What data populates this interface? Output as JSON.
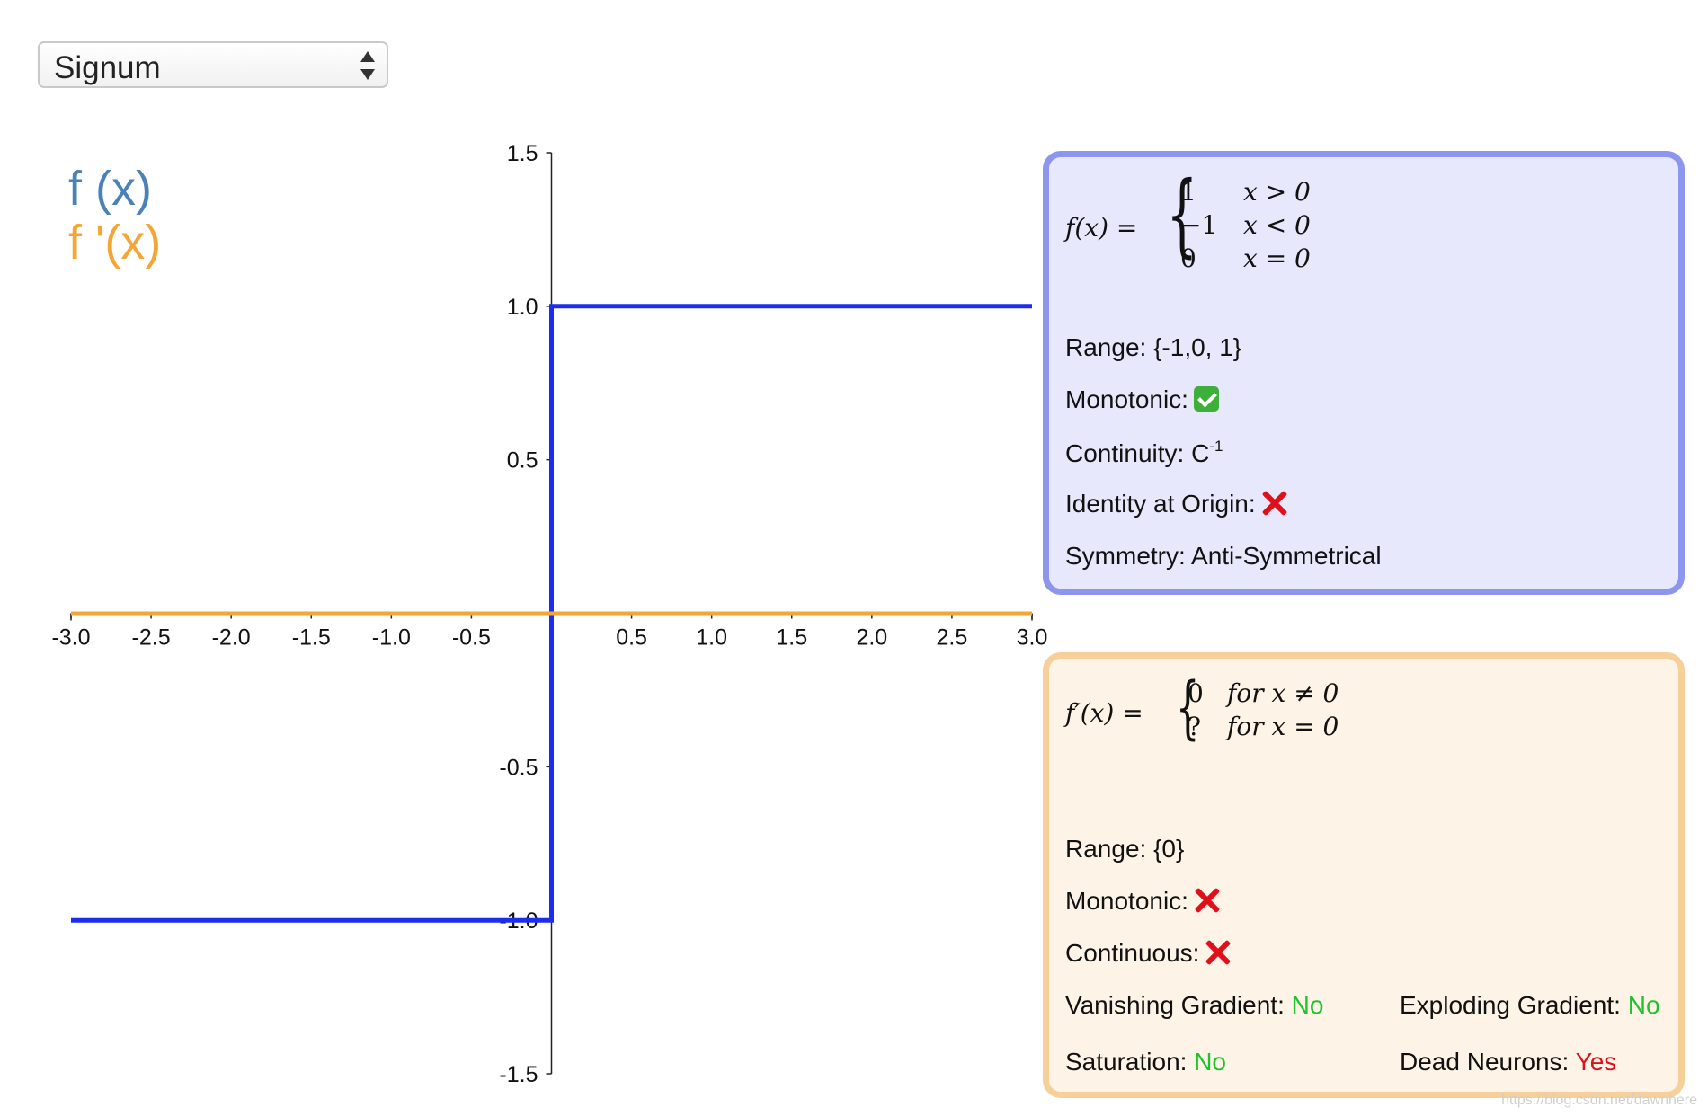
{
  "select": {
    "value": "Signum"
  },
  "legend": {
    "f_label": "f (x)",
    "df_label": "f '(x)"
  },
  "colors": {
    "f_line": "#1b2ef0",
    "df_line": "#f5a534",
    "f_legend": "#4a82b8",
    "df_legend": "#f5a534"
  },
  "chart_data": {
    "type": "line",
    "xlim": [
      -3.0,
      3.0
    ],
    "ylim": [
      -1.5,
      1.5
    ],
    "x_ticks": [
      "-3.0",
      "-2.5",
      "-2.0",
      "-1.5",
      "-1.0",
      "-0.5",
      "0.5",
      "1.0",
      "1.5",
      "2.0",
      "2.5",
      "3.0"
    ],
    "y_ticks": [
      "1.5",
      "1.0",
      "0.5",
      "-0.5",
      "-1.0",
      "-1.5"
    ],
    "series": [
      {
        "name": "f (x)",
        "points": [
          [
            -3.0,
            -1
          ],
          [
            0,
            -1
          ],
          [
            0,
            1
          ],
          [
            3.0,
            1
          ]
        ]
      },
      {
        "name": "f '(x)",
        "points": [
          [
            -3.0,
            0
          ],
          [
            3.0,
            0
          ]
        ]
      }
    ]
  },
  "panel_f": {
    "lhs": "f(x) =",
    "cases": [
      {
        "value": "1",
        "condition": "x > 0"
      },
      {
        "value": "−1",
        "condition": "x < 0"
      },
      {
        "value": "0",
        "condition": "x = 0"
      }
    ],
    "range_label": "Range: {-1,0, 1}",
    "monotonic_label": "Monotonic:",
    "continuity_label": "Continuity: C",
    "continuity_sup": "-1",
    "identity_label": "Identity at Origin:",
    "symmetry_label": "Symmetry: Anti-Symmetrical"
  },
  "panel_df": {
    "lhs": "f′(x) =",
    "cases": [
      {
        "value": "0",
        "condition": "for x ≠ 0"
      },
      {
        "value": "?",
        "condition": "for x = 0"
      }
    ],
    "range_label": "Range: {0}",
    "monotonic_label": "Monotonic:",
    "continuous_label": "Continuous:",
    "vanishing_label": "Vanishing Gradient:",
    "vanishing_value": "No",
    "exploding_label": "Exploding Gradient:",
    "exploding_value": "No",
    "saturation_label": "Saturation:",
    "saturation_value": "No",
    "dead_label": "Dead Neurons:",
    "dead_value": "Yes"
  },
  "watermark": "https://blog.csdn.net/dawnhere"
}
